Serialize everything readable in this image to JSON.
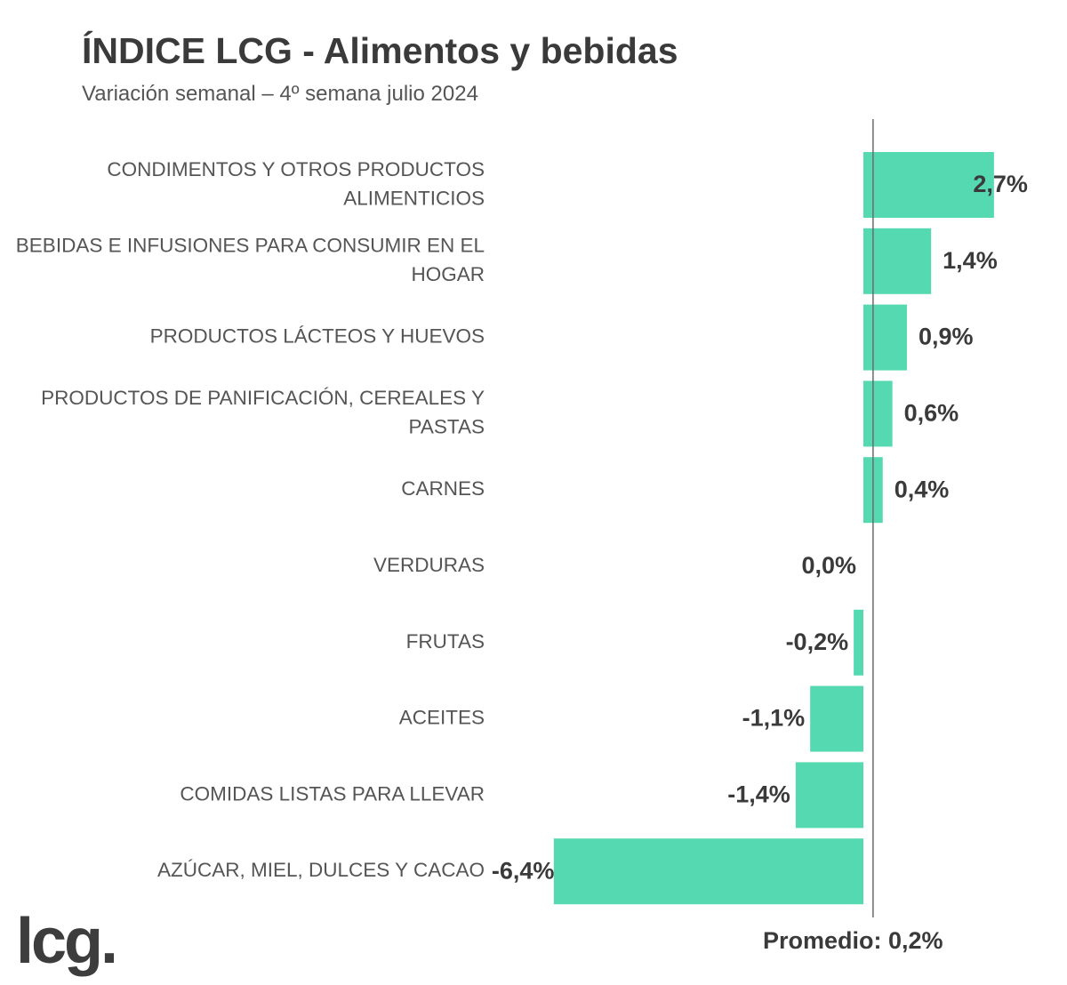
{
  "header": {
    "title": "ÍNDICE LCG - Alimentos y bebidas",
    "subtitle": "Variación semanal – 4º semana julio 2024"
  },
  "footer": {
    "average_label": "Promedio: 0,2%",
    "logo_text": "lcg."
  },
  "colors": {
    "bar": "#55d9b1",
    "text": "#3a3a3a",
    "category_text": "#555555",
    "axis_line": "#6b6b6b"
  },
  "chart_data": {
    "type": "bar",
    "orientation": "horizontal",
    "title": "ÍNDICE LCG - Alimentos y bebidas",
    "subtitle": "Variación semanal – 4º semana julio 2024",
    "categories": [
      [
        "CONDIMENTOS Y OTROS PRODUCTOS",
        "ALIMENTICIOS"
      ],
      [
        "BEBIDAS E INFUSIONES PARA CONSUMIR EN EL",
        "HOGAR"
      ],
      [
        "PRODUCTOS LÁCTEOS Y HUEVOS"
      ],
      [
        "PRODUCTOS DE PANIFICACIÓN, CEREALES Y",
        "PASTAS"
      ],
      [
        "CARNES"
      ],
      [
        "VERDURAS"
      ],
      [
        "FRUTAS"
      ],
      [
        "ACEITES"
      ],
      [
        "COMIDAS LISTAS PARA LLEVAR"
      ],
      [
        "AZÚCAR, MIEL, DULCES Y CACAO"
      ]
    ],
    "values": [
      2.7,
      1.4,
      0.9,
      0.6,
      0.4,
      0.0,
      -0.2,
      -1.1,
      -1.4,
      -6.4
    ],
    "value_labels": [
      "2,7%",
      "1,4%",
      "0,9%",
      "0,6%",
      "0,4%",
      "0,0%",
      "-0,2%",
      "-1,1%",
      "-1,4%",
      "-6,4%"
    ],
    "average": 0.2,
    "unit": "%"
  }
}
